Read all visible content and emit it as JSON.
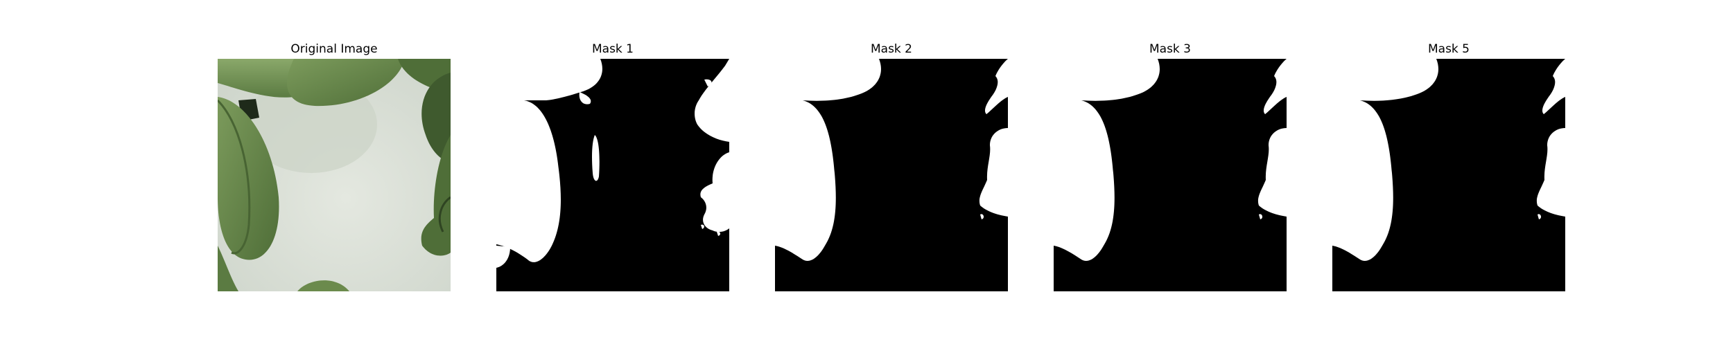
{
  "figure": {
    "panels": [
      {
        "title": "Original Image"
      },
      {
        "title": "Mask 1"
      },
      {
        "title": "Mask 2"
      },
      {
        "title": "Mask 3"
      },
      {
        "title": "Mask 5"
      }
    ]
  },
  "colors": {
    "mask_foreground": "#ffffff",
    "mask_background": "#000000",
    "photo_background": "#dfe4dc",
    "leaf_green": "#6f9150",
    "leaf_dark": "#3f5a2e"
  }
}
